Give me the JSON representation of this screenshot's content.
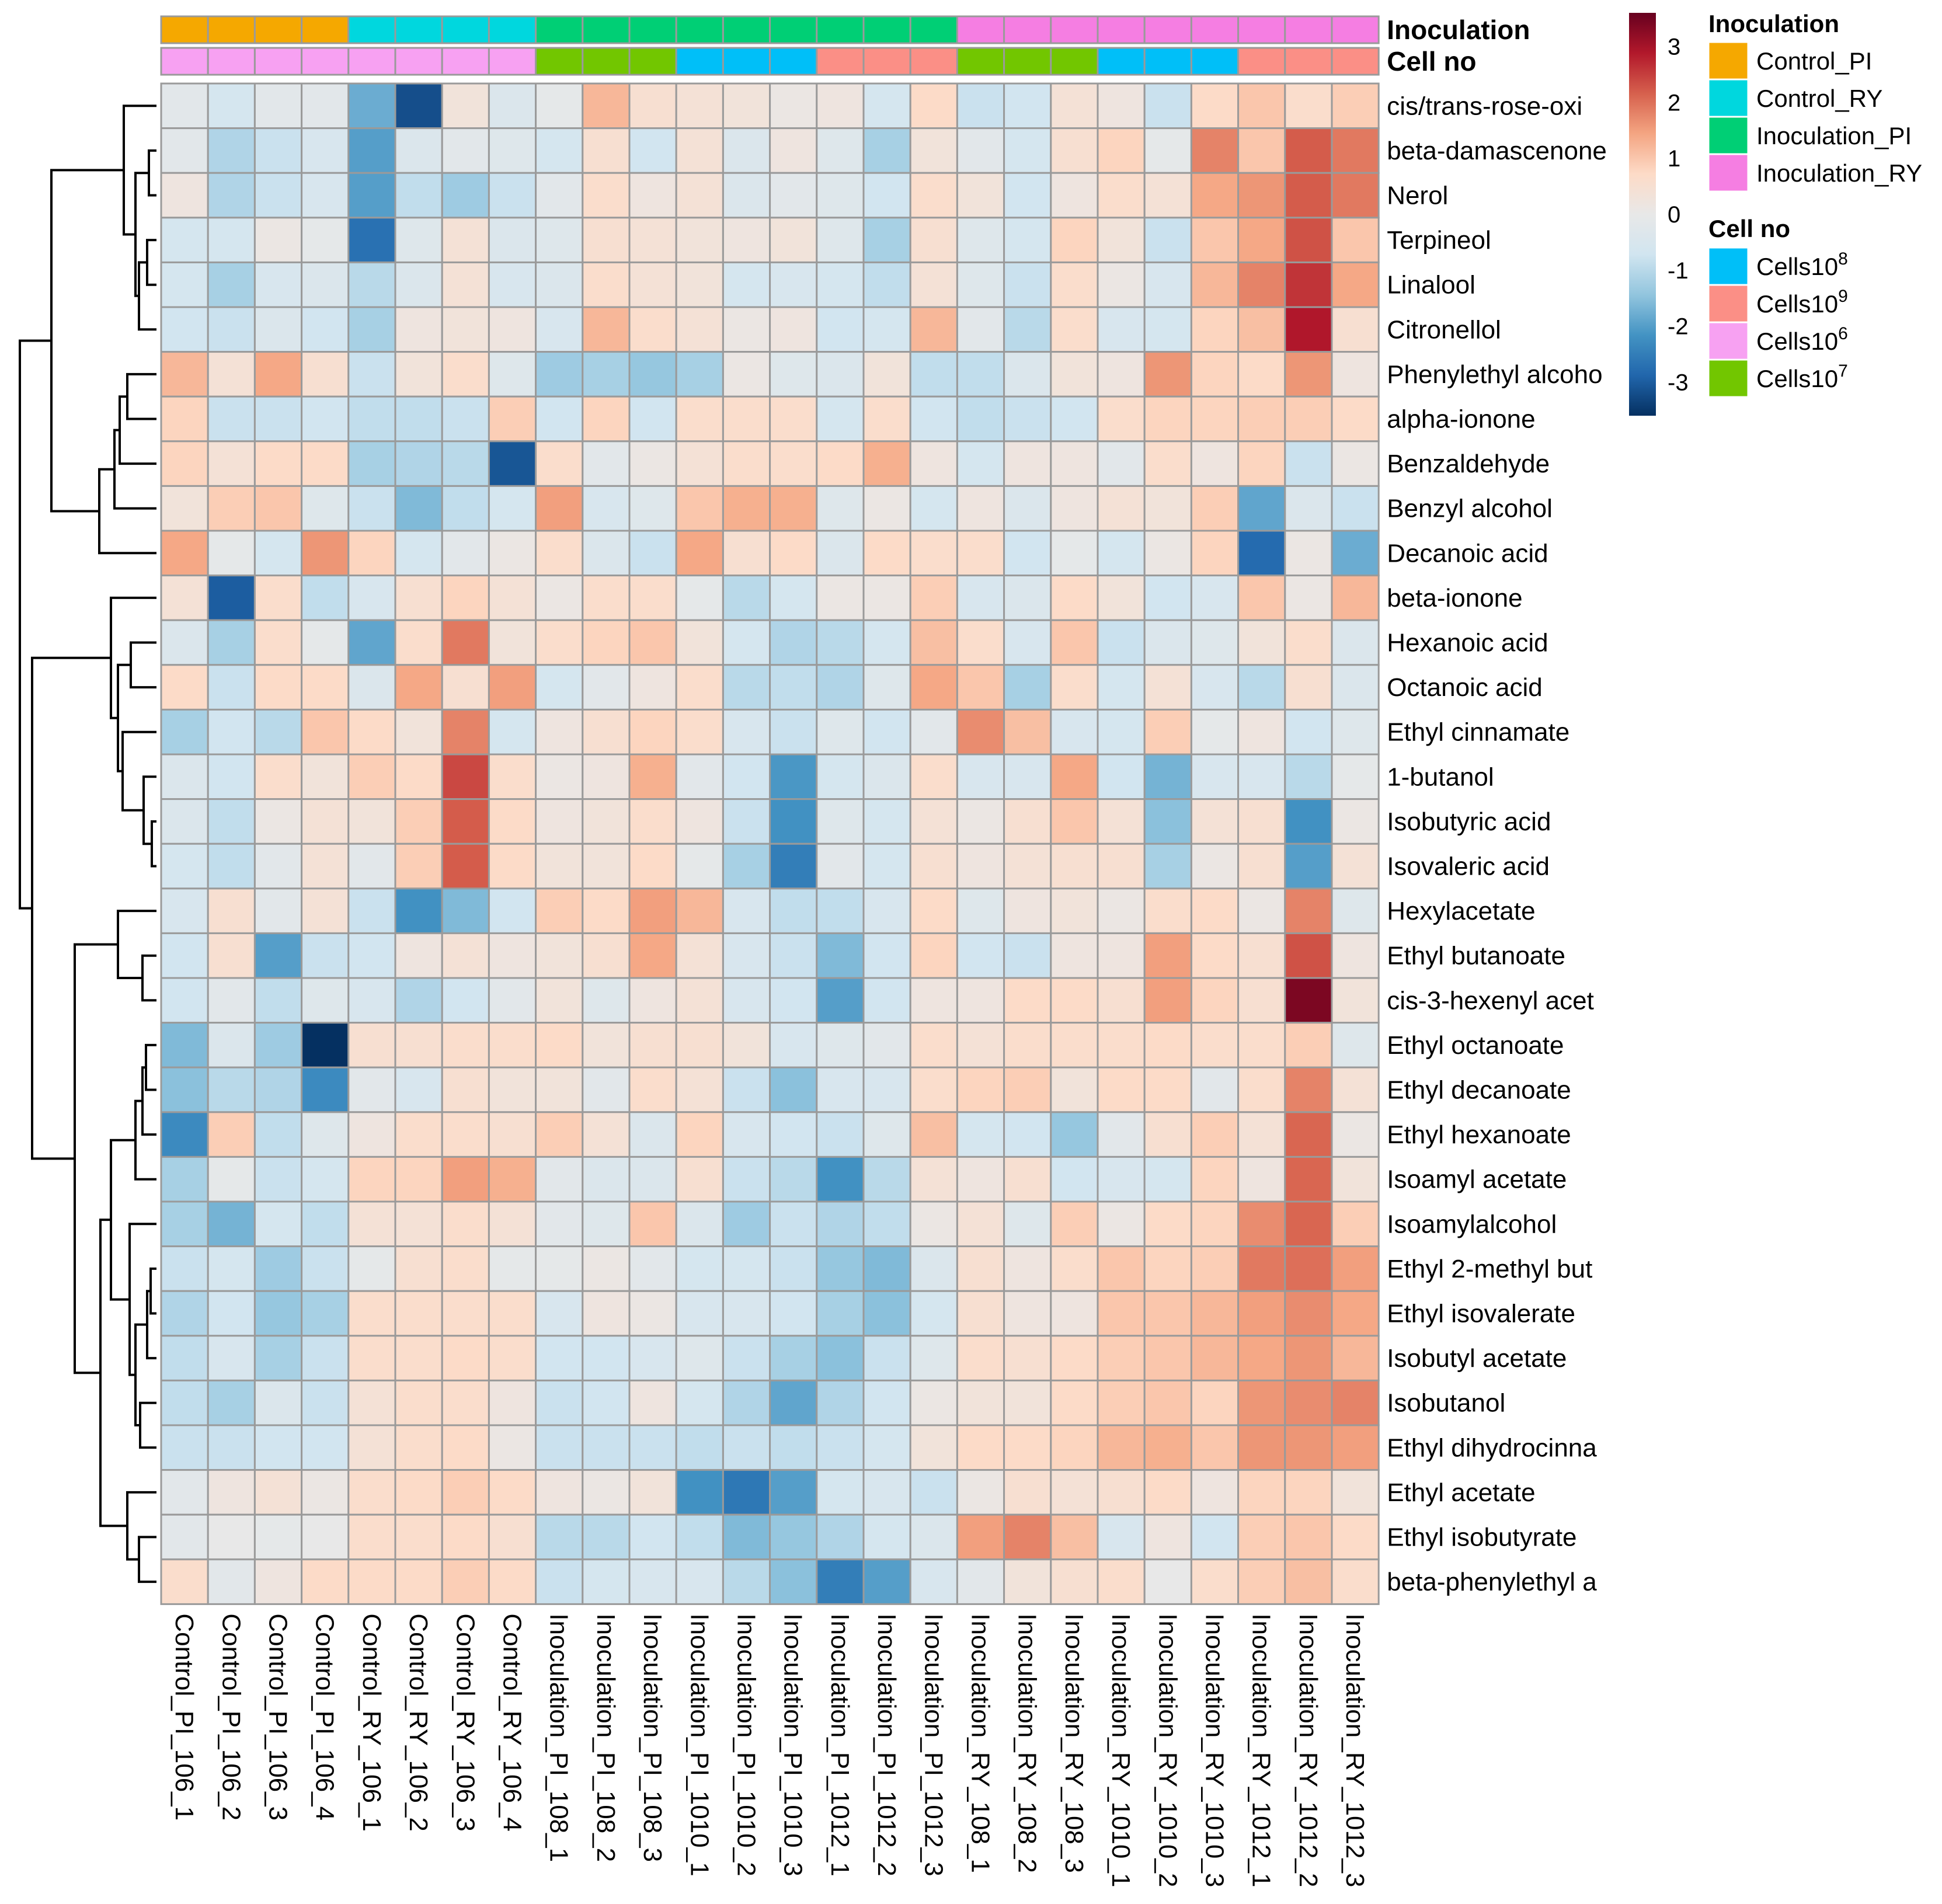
{
  "chart_data": {
    "type": "heatmap",
    "title": "",
    "rows": [
      "cis/trans-rose-oxi",
      "beta-damascenone",
      "Nerol",
      "Terpineol",
      "Linalool",
      "Citronellol",
      "Phenylethyl alcoho",
      "alpha-ionone",
      "Benzaldehyde",
      "Benzyl alcohol",
      "Decanoic acid",
      "beta-ionone",
      "Hexanoic acid",
      "Octanoic acid",
      "Ethyl cinnamate",
      "1-butanol",
      "Isobutyric acid",
      "Isovaleric acid",
      "Hexylacetate",
      "Ethyl butanoate",
      "cis-3-hexenyl acet",
      "Ethyl octanoate",
      "Ethyl decanoate",
      "Ethyl hexanoate",
      "Isoamyl acetate",
      "Isoamylalcohol",
      "Ethyl 2-methyl but",
      "Ethyl isovalerate",
      "Isobutyl acetate",
      "Isobutanol",
      "Ethyl dihydrocinna",
      "Ethyl acetate",
      "Ethyl isobutyrate",
      "beta-phenylethyl a"
    ],
    "columns": [
      "Control_PI_106_1",
      "Control_PI_106_2",
      "Control_PI_106_3",
      "Control_PI_106_4",
      "Control_RY_106_1",
      "Control_RY_106_2",
      "Control_RY_106_3",
      "Control_RY_106_4",
      "Inoculation_PI_108_1",
      "Inoculation_PI_108_2",
      "Inoculation_PI_108_3",
      "Inoculation_PI_1010_1",
      "Inoculation_PI_1010_2",
      "Inoculation_PI_1010_3",
      "Inoculation_PI_1012_1",
      "Inoculation_PI_1012_2",
      "Inoculation_PI_1012_3",
      "Inoculation_RY_108_1",
      "Inoculation_RY_108_2",
      "Inoculation_RY_108_3",
      "Inoculation_RY_1010_1",
      "Inoculation_RY_1010_2",
      "Inoculation_RY_1010_3",
      "Inoculation_RY_1012_1",
      "Inoculation_RY_1012_2",
      "Inoculation_RY_1012_3"
    ],
    "values": [
      [
        -0.2,
        -0.6,
        -0.2,
        -0.2,
        -1.8,
        -3.2,
        0.3,
        -0.4,
        -0.1,
        1.2,
        0.5,
        0.4,
        0.3,
        0.1,
        0.2,
        -0.6,
        0.7,
        -0.8,
        -0.7,
        0.4,
        0.2,
        -0.8,
        0.7,
        1.0,
        0.6,
        0.9
      ],
      [
        -0.2,
        -1.1,
        -0.8,
        -0.5,
        -2.0,
        -0.4,
        -0.2,
        -0.3,
        -0.6,
        0.5,
        -0.7,
        0.4,
        -0.4,
        0.2,
        -0.3,
        -1.2,
        0.3,
        -0.2,
        -0.6,
        0.5,
        0.8,
        -0.1,
        1.8,
        1.0,
        2.2,
        1.9
      ],
      [
        0.2,
        -1.1,
        -0.8,
        -0.5,
        -2.0,
        -0.9,
        -1.3,
        -0.8,
        -0.2,
        0.6,
        0.2,
        0.4,
        -0.4,
        -0.2,
        -0.3,
        -0.7,
        0.6,
        0.3,
        -0.7,
        0.2,
        0.6,
        0.4,
        1.4,
        1.6,
        2.2,
        1.9
      ],
      [
        -0.6,
        -0.6,
        0.1,
        -0.1,
        -2.7,
        -0.3,
        0.4,
        -0.4,
        -0.3,
        0.5,
        0.4,
        0.3,
        0.2,
        0.3,
        -0.3,
        -1.2,
        0.5,
        -0.3,
        -0.6,
        0.8,
        0.3,
        -0.8,
        1.0,
        1.4,
        2.3,
        1.0
      ],
      [
        -0.6,
        -1.2,
        -0.5,
        -0.4,
        -1.0,
        -0.4,
        0.4,
        -0.5,
        -0.4,
        0.6,
        0.4,
        0.3,
        -0.6,
        -0.5,
        -0.6,
        -0.9,
        0.4,
        -0.3,
        -0.8,
        0.6,
        0.1,
        -0.5,
        1.2,
        1.8,
        2.6,
        1.4
      ],
      [
        -0.7,
        -0.8,
        -0.4,
        -0.7,
        -1.2,
        0.2,
        0.3,
        0.2,
        -0.5,
        1.2,
        0.6,
        0.4,
        0.1,
        0.2,
        -0.7,
        -0.6,
        1.2,
        -0.2,
        -1.0,
        0.6,
        -0.5,
        -0.6,
        0.8,
        1.1,
        2.9,
        0.5
      ],
      [
        1.2,
        0.4,
        1.4,
        0.5,
        -0.8,
        0.3,
        0.6,
        -0.3,
        -1.3,
        -1.2,
        -1.4,
        -1.2,
        0.1,
        -0.3,
        -0.4,
        0.3,
        -0.9,
        -0.9,
        -0.4,
        0.3,
        0.2,
        1.6,
        0.8,
        0.7,
        1.6,
        0.2
      ],
      [
        0.8,
        -0.8,
        -0.8,
        -0.7,
        -0.9,
        -0.9,
        -0.8,
        0.9,
        -0.7,
        0.8,
        -0.7,
        0.6,
        0.6,
        0.6,
        -0.6,
        0.6,
        -0.7,
        -0.9,
        -0.8,
        -0.7,
        0.6,
        0.8,
        0.8,
        0.9,
        0.9,
        0.7
      ],
      [
        0.8,
        0.4,
        0.7,
        0.7,
        -1.2,
        -1.1,
        -1.0,
        -3.1,
        0.6,
        -0.2,
        0.1,
        0.4,
        0.6,
        0.6,
        0.7,
        1.3,
        0.2,
        -0.6,
        0.2,
        0.2,
        -0.2,
        0.6,
        0.2,
        0.8,
        -0.8,
        0.1
      ],
      [
        0.3,
        0.9,
        1.0,
        -0.3,
        -0.8,
        -1.6,
        -0.9,
        -0.6,
        1.5,
        -0.5,
        -0.3,
        1.0,
        1.3,
        1.3,
        -0.3,
        0.1,
        -0.6,
        0.2,
        -0.4,
        0.2,
        0.4,
        0.3,
        0.9,
        -1.9,
        -0.4,
        -0.8
      ],
      [
        1.4,
        -0.1,
        -0.6,
        1.6,
        0.8,
        -0.6,
        -0.2,
        0.1,
        0.6,
        -0.4,
        -0.8,
        1.4,
        0.5,
        0.7,
        -0.4,
        0.7,
        0.6,
        0.6,
        -0.7,
        -0.1,
        -0.6,
        0.1,
        0.8,
        -2.8,
        0.1,
        -1.8
      ],
      [
        0.4,
        -3.0,
        0.6,
        -0.9,
        -0.5,
        0.5,
        0.8,
        0.4,
        0.1,
        0.6,
        0.6,
        -0.1,
        -1.0,
        -0.6,
        0.1,
        0.1,
        0.9,
        -0.5,
        -0.4,
        0.7,
        0.3,
        -0.7,
        -0.5,
        1.0,
        0.1,
        1.2
      ],
      [
        -0.4,
        -1.2,
        0.6,
        -0.1,
        -1.9,
        0.6,
        1.9,
        0.3,
        0.6,
        0.8,
        1.0,
        0.3,
        -0.6,
        -1.1,
        -1.0,
        -0.6,
        1.1,
        0.6,
        -0.5,
        1.0,
        -0.8,
        -0.4,
        -0.3,
        0.3,
        0.6,
        -0.4
      ],
      [
        0.7,
        -0.8,
        0.7,
        0.7,
        -0.4,
        1.4,
        0.5,
        1.5,
        -0.6,
        -0.2,
        0.2,
        0.6,
        -1.0,
        -0.9,
        -1.1,
        -0.3,
        1.4,
        1.0,
        -1.2,
        0.6,
        -0.6,
        0.4,
        -0.5,
        -1.0,
        0.5,
        -0.4
      ],
      [
        -1.2,
        -0.7,
        -1.0,
        1.0,
        0.7,
        0.3,
        1.8,
        -0.6,
        0.2,
        0.5,
        0.8,
        0.6,
        -0.5,
        -0.8,
        -0.3,
        -0.7,
        -0.2,
        1.7,
        1.1,
        -0.5,
        -0.6,
        0.9,
        -0.1,
        0.2,
        -0.7,
        -0.3
      ],
      [
        -0.4,
        -0.7,
        0.6,
        0.3,
        0.9,
        0.7,
        2.4,
        0.6,
        0.1,
        0.2,
        1.3,
        -0.2,
        -0.7,
        -2.1,
        -0.6,
        -0.4,
        0.6,
        -0.5,
        -0.5,
        1.4,
        -0.7,
        -1.7,
        -0.5,
        -0.5,
        -1.0,
        -0.1
      ],
      [
        -0.4,
        -0.9,
        0.1,
        0.4,
        0.3,
        0.9,
        2.2,
        0.7,
        0.2,
        0.3,
        0.6,
        0.2,
        -0.8,
        -2.2,
        -0.3,
        -0.6,
        0.4,
        0.1,
        0.5,
        1.0,
        0.4,
        -1.5,
        0.4,
        0.5,
        -2.2,
        0.1
      ],
      [
        -0.6,
        -0.9,
        -0.2,
        0.4,
        -0.2,
        0.9,
        2.2,
        0.7,
        0.3,
        0.3,
        0.7,
        -0.1,
        -1.2,
        -2.5,
        -0.2,
        -0.6,
        0.5,
        0.2,
        0.4,
        0.5,
        0.5,
        -1.2,
        0.1,
        0.5,
        -2.0,
        0.4
      ],
      [
        -0.5,
        0.5,
        -0.2,
        0.4,
        -0.8,
        -2.2,
        -1.6,
        -0.7,
        0.9,
        0.7,
        1.5,
        1.2,
        -0.5,
        -0.9,
        -0.9,
        -0.5,
        0.7,
        -0.3,
        0.2,
        0.3,
        0.1,
        0.6,
        0.7,
        0.1,
        1.8,
        -0.3
      ],
      [
        -0.7,
        0.5,
        -2.0,
        -0.8,
        -0.7,
        0.2,
        0.4,
        0.2,
        0.3,
        0.5,
        1.4,
        0.4,
        -0.5,
        -0.8,
        -1.6,
        -0.7,
        0.8,
        -0.7,
        -0.8,
        0.2,
        0.2,
        1.5,
        0.7,
        0.5,
        2.3,
        0.2
      ],
      [
        -0.7,
        -0.2,
        -0.9,
        -0.3,
        -0.5,
        -1.1,
        -0.7,
        -0.2,
        0.3,
        -0.3,
        0.2,
        0.4,
        -0.5,
        -0.7,
        -2.0,
        -0.7,
        0.2,
        0.2,
        0.7,
        0.7,
        0.5,
        1.5,
        0.8,
        0.5,
        3.4,
        0.3
      ],
      [
        -1.6,
        -0.4,
        -1.3,
        -3.6,
        0.5,
        0.5,
        0.6,
        0.6,
        0.7,
        0.3,
        0.5,
        0.5,
        0.3,
        -0.5,
        -0.3,
        -0.2,
        0.6,
        0.4,
        0.6,
        0.6,
        0.6,
        0.7,
        0.6,
        0.6,
        0.9,
        -0.3
      ],
      [
        -1.5,
        -1.0,
        -1.1,
        -2.3,
        -0.2,
        -0.5,
        0.5,
        0.3,
        0.3,
        -0.2,
        0.6,
        0.4,
        -0.8,
        -1.5,
        -0.5,
        -0.5,
        0.6,
        0.8,
        0.9,
        0.3,
        0.7,
        0.7,
        -0.2,
        0.6,
        1.8,
        0.4
      ],
      [
        -2.3,
        0.9,
        -0.9,
        -0.3,
        0.2,
        0.6,
        0.6,
        0.5,
        0.9,
        0.4,
        -0.4,
        0.8,
        -0.5,
        -0.7,
        -0.8,
        -0.3,
        1.1,
        -0.6,
        -0.7,
        -1.4,
        -0.2,
        0.5,
        0.9,
        0.4,
        2.1,
        0.1
      ],
      [
        -1.2,
        -0.1,
        -0.8,
        -0.6,
        0.8,
        0.8,
        1.5,
        1.3,
        -0.2,
        -0.4,
        -0.4,
        0.5,
        -0.8,
        -1.0,
        -2.2,
        -1.0,
        0.4,
        0.2,
        0.5,
        -0.7,
        -0.5,
        -0.6,
        0.8,
        0.2,
        2.1,
        0.3
      ],
      [
        -1.2,
        -1.7,
        -0.6,
        -0.9,
        0.4,
        0.4,
        0.6,
        0.4,
        -0.2,
        -0.3,
        1.0,
        -0.4,
        -1.3,
        -0.8,
        -1.1,
        -0.9,
        0.1,
        0.4,
        -0.3,
        0.9,
        0.1,
        0.7,
        0.8,
        1.7,
        2.1,
        0.9
      ],
      [
        -0.8,
        -0.6,
        -1.3,
        -0.8,
        -0.1,
        0.5,
        0.6,
        -0.1,
        -0.1,
        0.1,
        -0.2,
        -0.6,
        -0.6,
        -0.8,
        -1.4,
        -1.6,
        -0.4,
        0.5,
        0.2,
        0.6,
        1.0,
        0.8,
        0.9,
        1.9,
        2.0,
        1.5
      ],
      [
        -1.1,
        -0.7,
        -1.4,
        -1.2,
        0.6,
        0.6,
        0.6,
        0.6,
        -0.5,
        0.2,
        0.1,
        -0.5,
        -0.5,
        -0.7,
        -1.2,
        -1.5,
        -0.6,
        0.5,
        0.2,
        0.2,
        1.0,
        1.0,
        1.2,
        1.5,
        1.7,
        1.4
      ],
      [
        -0.9,
        -0.5,
        -1.2,
        -0.8,
        0.6,
        0.6,
        0.7,
        0.6,
        -0.7,
        -0.7,
        -0.5,
        -0.3,
        -0.8,
        -1.2,
        -1.5,
        -0.8,
        -0.3,
        0.6,
        0.5,
        0.7,
        0.9,
        1.0,
        1.2,
        1.4,
        1.6,
        1.2
      ],
      [
        -0.9,
        -1.2,
        -0.4,
        -0.8,
        0.4,
        0.6,
        0.6,
        0.2,
        -0.8,
        -0.7,
        0.2,
        -0.6,
        -1.1,
        -1.9,
        -1.1,
        -0.7,
        0.1,
        0.3,
        0.3,
        0.7,
        0.9,
        1.0,
        0.8,
        1.6,
        1.7,
        1.8
      ],
      [
        -0.8,
        -0.8,
        -0.7,
        -0.7,
        0.4,
        0.6,
        0.7,
        0.1,
        -0.8,
        -0.8,
        -0.8,
        -0.9,
        -0.8,
        -0.9,
        -0.8,
        -0.6,
        0.3,
        0.7,
        0.7,
        0.8,
        1.2,
        1.3,
        1.0,
        1.6,
        1.6,
        1.5
      ],
      [
        -0.2,
        0.2,
        0.4,
        0.1,
        0.6,
        0.7,
        0.9,
        0.7,
        0.2,
        0.1,
        0.3,
        -2.2,
        -2.6,
        -2.0,
        -0.6,
        -0.5,
        -0.8,
        0.1,
        0.5,
        0.4,
        0.5,
        0.7,
        0.2,
        0.8,
        0.8,
        0.3
      ],
      [
        -0.2,
        0.0,
        -0.1,
        0.0,
        0.6,
        0.6,
        0.7,
        0.5,
        -1.0,
        -1.0,
        -0.7,
        -0.9,
        -1.6,
        -1.4,
        -1.1,
        -0.6,
        -0.4,
        1.5,
        1.8,
        1.1,
        -0.5,
        0.2,
        -0.7,
        0.9,
        1.0,
        0.7
      ],
      [
        0.6,
        -0.2,
        0.2,
        0.7,
        0.7,
        0.7,
        0.9,
        0.7,
        -0.8,
        -0.6,
        -0.5,
        -0.5,
        -1.0,
        -1.5,
        -2.5,
        -2.0,
        -0.5,
        -0.2,
        0.3,
        0.5,
        0.6,
        0.0,
        0.6,
        0.9,
        1.1,
        0.6
      ]
    ],
    "color_scale": {
      "min": -3.6,
      "max": 3.6,
      "colors": [
        "#053061",
        "#2166ac",
        "#4393c3",
        "#92c5de",
        "#d1e5f0",
        "#e8e8e8",
        "#fddbc7",
        "#f4a582",
        "#d6604d",
        "#b2182b",
        "#67001f"
      ]
    },
    "scale_ticks": [
      "3",
      "2",
      "1",
      "0",
      "-1",
      "-2",
      "-3"
    ],
    "annotations": [
      {
        "title": "Inoculation",
        "values": [
          "Control_PI",
          "Control_PI",
          "Control_PI",
          "Control_PI",
          "Control_RY",
          "Control_RY",
          "Control_RY",
          "Control_RY",
          "Inoculation_PI",
          "Inoculation_PI",
          "Inoculation_PI",
          "Inoculation_PI",
          "Inoculation_PI",
          "Inoculation_PI",
          "Inoculation_PI",
          "Inoculation_PI",
          "Inoculation_PI",
          "Inoculation_RY",
          "Inoculation_RY",
          "Inoculation_RY",
          "Inoculation_RY",
          "Inoculation_RY",
          "Inoculation_RY",
          "Inoculation_RY",
          "Inoculation_RY",
          "Inoculation_RY"
        ]
      },
      {
        "title": "Cell no",
        "values": [
          "Cells10^6",
          "Cells10^6",
          "Cells10^6",
          "Cells10^6",
          "Cells10^6",
          "Cells10^6",
          "Cells10^6",
          "Cells10^6",
          "Cells10^7",
          "Cells10^7",
          "Cells10^7",
          "Cells10^8",
          "Cells10^8",
          "Cells10^8",
          "Cells10^9",
          "Cells10^9",
          "Cells10^9",
          "Cells10^7",
          "Cells10^7",
          "Cells10^7",
          "Cells10^8",
          "Cells10^8",
          "Cells10^8",
          "Cells10^9",
          "Cells10^9",
          "Cells10^9"
        ]
      }
    ],
    "legends": [
      {
        "title": "Inoculation",
        "entries": [
          {
            "label": "Control_PI",
            "color": "#f5a800"
          },
          {
            "label": "Control_RY",
            "color": "#00d7de"
          },
          {
            "label": "Inoculation_PI",
            "color": "#00cf75"
          },
          {
            "label": "Inoculation_RY",
            "color": "#f57ee2"
          }
        ]
      },
      {
        "title": "Cell no",
        "entries": [
          {
            "key": "Cells10^8",
            "base": "Cells10",
            "exp": "8",
            "color": "#00bff8"
          },
          {
            "key": "Cells10^9",
            "base": "Cells10",
            "exp": "9",
            "color": "#fb8f86"
          },
          {
            "key": "Cells10^6",
            "base": "Cells10",
            "exp": "6",
            "color": "#f7a1f2"
          },
          {
            "key": "Cells10^7",
            "base": "Cells10",
            "exp": "7",
            "color": "#72c600"
          }
        ]
      }
    ],
    "row_dendrogram": "shown on left",
    "legend_position": "right"
  }
}
